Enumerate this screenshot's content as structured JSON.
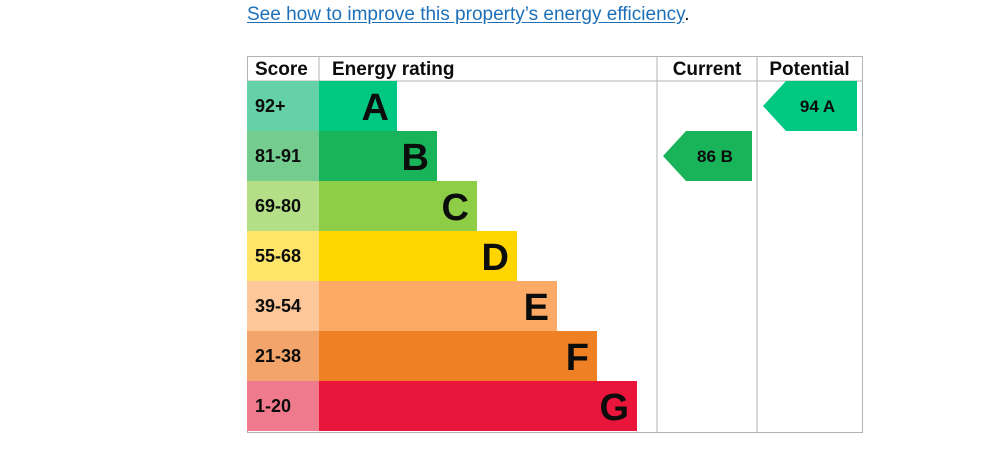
{
  "page": {
    "improve_link_text": "See how to improve this property’s energy efficiency",
    "improve_link_suffix": "."
  },
  "chart_data": {
    "type": "table",
    "headers": {
      "score": "Score",
      "rating": "Energy rating",
      "current": "Current",
      "potential": "Potential"
    },
    "bands": [
      {
        "letter": "A",
        "range": "92+",
        "color": "#00c781",
        "score_color": "#64d1a8"
      },
      {
        "letter": "B",
        "range": "81-91",
        "color": "#19b459",
        "score_color": "#74cc8f"
      },
      {
        "letter": "C",
        "range": "69-80",
        "color": "#8dce46",
        "score_color": "#b4df86"
      },
      {
        "letter": "D",
        "range": "55-68",
        "color": "#ffd500",
        "score_color": "#ffe46a"
      },
      {
        "letter": "E",
        "range": "39-54",
        "color": "#fcaa65",
        "score_color": "#fdc79a"
      },
      {
        "letter": "F",
        "range": "21-38",
        "color": "#ef8023",
        "score_color": "#f3a46a"
      },
      {
        "letter": "G",
        "range": "1-20",
        "color": "#e9153b",
        "score_color": "#f07a8d"
      }
    ],
    "current": {
      "score": 86,
      "band": "B",
      "label": "86  B",
      "color": "#19b459"
    },
    "potential": {
      "score": 94,
      "band": "A",
      "label": "94  A",
      "color": "#00c781"
    }
  }
}
